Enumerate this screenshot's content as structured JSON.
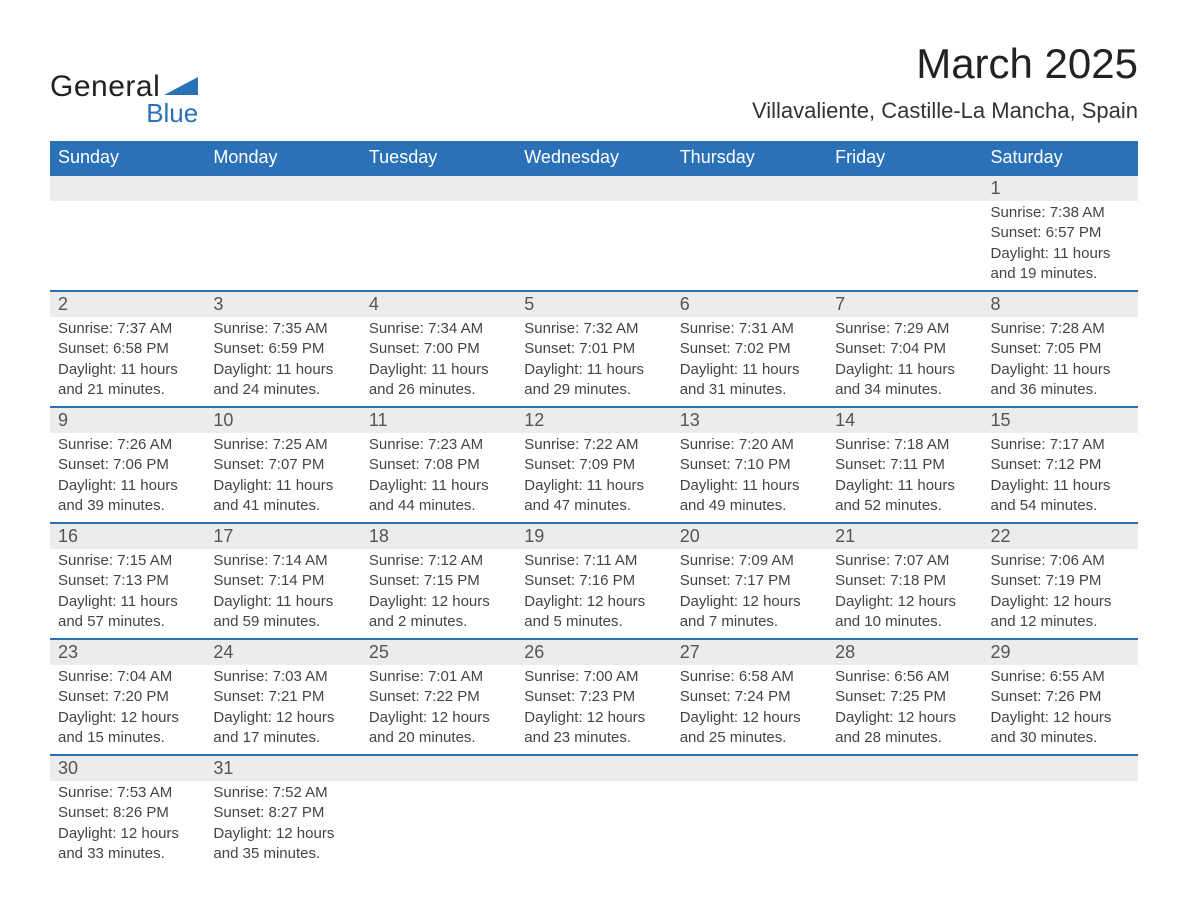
{
  "logo": {
    "word1": "General",
    "word2": "Blue",
    "brand_color": "#2a71b8"
  },
  "title": "March 2025",
  "location": "Villavaliente, Castille-La Mancha, Spain",
  "colors": {
    "header_bg": "#2a71b8",
    "header_text": "#ffffff",
    "daynum_bg": "#ececec",
    "border": "#2a71b8",
    "text": "#3c3c3c"
  },
  "day_headers": [
    "Sunday",
    "Monday",
    "Tuesday",
    "Wednesday",
    "Thursday",
    "Friday",
    "Saturday"
  ],
  "weeks": [
    [
      null,
      null,
      null,
      null,
      null,
      null,
      {
        "n": "1",
        "sunrise": "7:38 AM",
        "sunset": "6:57 PM",
        "daylight": "11 hours and 19 minutes."
      }
    ],
    [
      {
        "n": "2",
        "sunrise": "7:37 AM",
        "sunset": "6:58 PM",
        "daylight": "11 hours and 21 minutes."
      },
      {
        "n": "3",
        "sunrise": "7:35 AM",
        "sunset": "6:59 PM",
        "daylight": "11 hours and 24 minutes."
      },
      {
        "n": "4",
        "sunrise": "7:34 AM",
        "sunset": "7:00 PM",
        "daylight": "11 hours and 26 minutes."
      },
      {
        "n": "5",
        "sunrise": "7:32 AM",
        "sunset": "7:01 PM",
        "daylight": "11 hours and 29 minutes."
      },
      {
        "n": "6",
        "sunrise": "7:31 AM",
        "sunset": "7:02 PM",
        "daylight": "11 hours and 31 minutes."
      },
      {
        "n": "7",
        "sunrise": "7:29 AM",
        "sunset": "7:04 PM",
        "daylight": "11 hours and 34 minutes."
      },
      {
        "n": "8",
        "sunrise": "7:28 AM",
        "sunset": "7:05 PM",
        "daylight": "11 hours and 36 minutes."
      }
    ],
    [
      {
        "n": "9",
        "sunrise": "7:26 AM",
        "sunset": "7:06 PM",
        "daylight": "11 hours and 39 minutes."
      },
      {
        "n": "10",
        "sunrise": "7:25 AM",
        "sunset": "7:07 PM",
        "daylight": "11 hours and 41 minutes."
      },
      {
        "n": "11",
        "sunrise": "7:23 AM",
        "sunset": "7:08 PM",
        "daylight": "11 hours and 44 minutes."
      },
      {
        "n": "12",
        "sunrise": "7:22 AM",
        "sunset": "7:09 PM",
        "daylight": "11 hours and 47 minutes."
      },
      {
        "n": "13",
        "sunrise": "7:20 AM",
        "sunset": "7:10 PM",
        "daylight": "11 hours and 49 minutes."
      },
      {
        "n": "14",
        "sunrise": "7:18 AM",
        "sunset": "7:11 PM",
        "daylight": "11 hours and 52 minutes."
      },
      {
        "n": "15",
        "sunrise": "7:17 AM",
        "sunset": "7:12 PM",
        "daylight": "11 hours and 54 minutes."
      }
    ],
    [
      {
        "n": "16",
        "sunrise": "7:15 AM",
        "sunset": "7:13 PM",
        "daylight": "11 hours and 57 minutes."
      },
      {
        "n": "17",
        "sunrise": "7:14 AM",
        "sunset": "7:14 PM",
        "daylight": "11 hours and 59 minutes."
      },
      {
        "n": "18",
        "sunrise": "7:12 AM",
        "sunset": "7:15 PM",
        "daylight": "12 hours and 2 minutes."
      },
      {
        "n": "19",
        "sunrise": "7:11 AM",
        "sunset": "7:16 PM",
        "daylight": "12 hours and 5 minutes."
      },
      {
        "n": "20",
        "sunrise": "7:09 AM",
        "sunset": "7:17 PM",
        "daylight": "12 hours and 7 minutes."
      },
      {
        "n": "21",
        "sunrise": "7:07 AM",
        "sunset": "7:18 PM",
        "daylight": "12 hours and 10 minutes."
      },
      {
        "n": "22",
        "sunrise": "7:06 AM",
        "sunset": "7:19 PM",
        "daylight": "12 hours and 12 minutes."
      }
    ],
    [
      {
        "n": "23",
        "sunrise": "7:04 AM",
        "sunset": "7:20 PM",
        "daylight": "12 hours and 15 minutes."
      },
      {
        "n": "24",
        "sunrise": "7:03 AM",
        "sunset": "7:21 PM",
        "daylight": "12 hours and 17 minutes."
      },
      {
        "n": "25",
        "sunrise": "7:01 AM",
        "sunset": "7:22 PM",
        "daylight": "12 hours and 20 minutes."
      },
      {
        "n": "26",
        "sunrise": "7:00 AM",
        "sunset": "7:23 PM",
        "daylight": "12 hours and 23 minutes."
      },
      {
        "n": "27",
        "sunrise": "6:58 AM",
        "sunset": "7:24 PM",
        "daylight": "12 hours and 25 minutes."
      },
      {
        "n": "28",
        "sunrise": "6:56 AM",
        "sunset": "7:25 PM",
        "daylight": "12 hours and 28 minutes."
      },
      {
        "n": "29",
        "sunrise": "6:55 AM",
        "sunset": "7:26 PM",
        "daylight": "12 hours and 30 minutes."
      }
    ],
    [
      {
        "n": "30",
        "sunrise": "7:53 AM",
        "sunset": "8:26 PM",
        "daylight": "12 hours and 33 minutes."
      },
      {
        "n": "31",
        "sunrise": "7:52 AM",
        "sunset": "8:27 PM",
        "daylight": "12 hours and 35 minutes."
      },
      null,
      null,
      null,
      null,
      null
    ]
  ],
  "labels": {
    "sunrise": "Sunrise: ",
    "sunset": "Sunset: ",
    "daylight": "Daylight: "
  }
}
